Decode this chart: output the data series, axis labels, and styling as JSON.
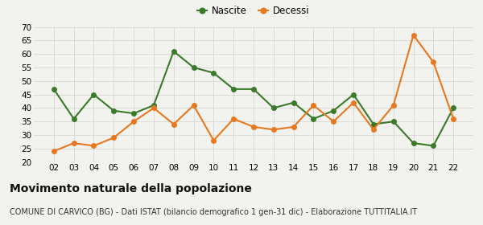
{
  "years": [
    "02",
    "03",
    "04",
    "05",
    "06",
    "07",
    "08",
    "09",
    "10",
    "11",
    "12",
    "13",
    "14",
    "15",
    "16",
    "17",
    "18",
    "19",
    "20",
    "21",
    "22"
  ],
  "nascite": [
    47,
    36,
    45,
    39,
    38,
    41,
    61,
    55,
    53,
    47,
    47,
    40,
    42,
    36,
    39,
    45,
    34,
    35,
    27,
    26,
    40
  ],
  "decessi": [
    24,
    27,
    26,
    29,
    35,
    40,
    34,
    41,
    28,
    36,
    33,
    32,
    33,
    41,
    35,
    42,
    32,
    41,
    67,
    57,
    36
  ],
  "nascite_color": "#3a7a2a",
  "decessi_color": "#e87820",
  "background_color": "#f2f2ee",
  "grid_color": "#d0d0d0",
  "ylim": [
    20,
    70
  ],
  "yticks": [
    20,
    25,
    30,
    35,
    40,
    45,
    50,
    55,
    60,
    65,
    70
  ],
  "title": "Movimento naturale della popolazione",
  "subtitle": "COMUNE DI CARVICO (BG) - Dati ISTAT (bilancio demografico 1 gen-31 dic) - Elaborazione TUTTITALIA.IT",
  "legend_nascite": "Nascite",
  "legend_decessi": "Decessi",
  "title_fontsize": 10,
  "subtitle_fontsize": 7,
  "marker_size": 4,
  "line_width": 1.5
}
